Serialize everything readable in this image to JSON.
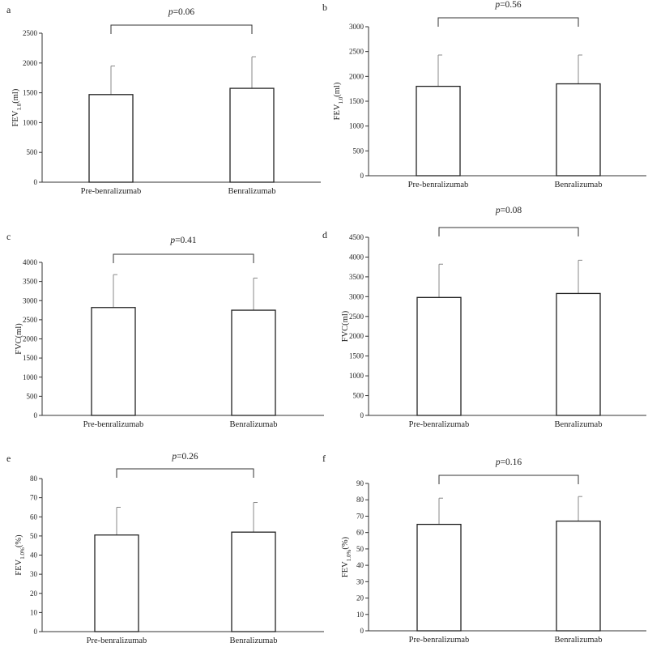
{
  "chart_data": [
    {
      "type": "bar",
      "panel": "a",
      "categories": [
        "Pre-benralizumab",
        "Benralizumab"
      ],
      "values": [
        1470,
        1575
      ],
      "error": [
        480,
        530
      ],
      "ylabel": "FEV1.0(ml)",
      "ylim": [
        0,
        2500
      ],
      "yticks": [
        0,
        500,
        1000,
        1500,
        2000,
        2500
      ],
      "pvalue": "=0.06"
    },
    {
      "type": "bar",
      "panel": "b",
      "categories": [
        "Pre-benralizumab",
        "Benralizumab"
      ],
      "values": [
        1800,
        1850
      ],
      "error": [
        630,
        580
      ],
      "ylabel": "FEV1.0(ml)",
      "ylim": [
        0,
        3000
      ],
      "yticks": [
        0,
        500,
        1000,
        1500,
        2000,
        2500,
        3000
      ],
      "pvalue": "=0.56"
    },
    {
      "type": "bar",
      "panel": "c",
      "categories": [
        "Pre-benralizumab",
        "Benralizumab"
      ],
      "values": [
        2820,
        2750
      ],
      "error": [
        860,
        840
      ],
      "ylabel": "FVC(ml)",
      "ylim": [
        0,
        4000
      ],
      "yticks": [
        0,
        500,
        1000,
        1500,
        2000,
        2500,
        3000,
        3500,
        4000
      ],
      "pvalue": "=0.41"
    },
    {
      "type": "bar",
      "panel": "d",
      "categories": [
        "Pre-benralizumab",
        "Benralizumab"
      ],
      "values": [
        2980,
        3080
      ],
      "error": [
        840,
        840
      ],
      "ylabel": "FVC(ml)",
      "ylim": [
        0,
        4500
      ],
      "yticks": [
        0,
        500,
        1000,
        1500,
        2000,
        2500,
        3000,
        3500,
        4000,
        4500
      ],
      "pvalue": "=0.08"
    },
    {
      "type": "bar",
      "panel": "e",
      "categories": [
        "Pre-benralizumab",
        "Benralizumab"
      ],
      "values": [
        50.5,
        52
      ],
      "error": [
        14.5,
        15.5
      ],
      "ylabel": "FEV1.0%(%)",
      "ylim": [
        0,
        80
      ],
      "yticks": [
        0,
        10,
        20,
        30,
        40,
        50,
        60,
        70,
        80
      ],
      "pvalue": "=0.26"
    },
    {
      "type": "bar",
      "panel": "f",
      "categories": [
        "Pre-benralizumab",
        "Benralizumab"
      ],
      "values": [
        65,
        67
      ],
      "error": [
        16,
        15
      ],
      "ylabel": "FEV1.0%(%)",
      "ylim": [
        0,
        90
      ],
      "yticks": [
        0,
        10,
        20,
        30,
        40,
        50,
        60,
        70,
        80,
        90
      ],
      "pvalue": "=0.16"
    }
  ],
  "labels": {
    "p_symbol": "p",
    "fev_base": "FEV",
    "sub_10": "1.0",
    "sub_10pct": "1.0%",
    "unit_ml": "(ml)",
    "unit_pct": "(%)",
    "fvc": "FVC(ml)"
  }
}
